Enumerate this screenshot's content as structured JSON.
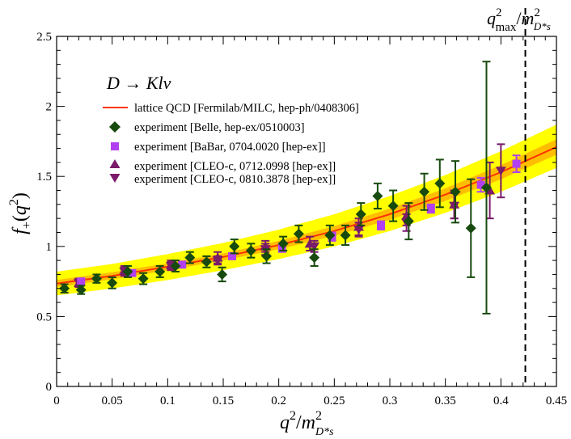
{
  "chart_data": {
    "type": "scatter",
    "title": "",
    "process_label": "D → Klν",
    "xlabel": {
      "base": "q",
      "sup": "2",
      "sep": "/",
      "base2": "m",
      "sup2": "2",
      "sub2": "D*s"
    },
    "ylabel": {
      "base": "f",
      "sub": "+",
      "paren_open": "(",
      "inner": "q",
      "inner_sup": "2",
      "paren_close": ")"
    },
    "qmax_label": {
      "base": "q",
      "sup": "2",
      "sub": "max",
      "sep": "/",
      "base2": "m",
      "sup2": "2",
      "sub2": "D*s"
    },
    "xlim": [
      0,
      0.45
    ],
    "ylim": [
      0,
      2.5
    ],
    "x_ticks": [
      0,
      0.05,
      0.1,
      0.15,
      0.2,
      0.25,
      0.3,
      0.35,
      0.4,
      0.45
    ],
    "x_tick_labels": [
      "0",
      "0.05",
      "0.1",
      "0.15",
      "0.2",
      "0.25",
      "0.3",
      "0.35",
      "0.4",
      "0.45"
    ],
    "y_ticks": [
      0,
      0.5,
      1,
      1.5,
      2,
      2.5
    ],
    "y_tick_labels": [
      "0",
      "0.5",
      "1",
      "1.5",
      "2",
      "2.5"
    ],
    "qmax_x": 0.422,
    "lattice": {
      "name": "lattice QCD [Fermilab/MILC, hep-ph/0408306]",
      "color": "#ff3300",
      "x": [
        0,
        0.05,
        0.1,
        0.15,
        0.2,
        0.25,
        0.3,
        0.35,
        0.4,
        0.45
      ],
      "center": [
        0.735,
        0.79,
        0.855,
        0.925,
        1.01,
        1.11,
        1.23,
        1.37,
        1.53,
        1.71
      ],
      "inner_low": [
        0.71,
        0.765,
        0.83,
        0.9,
        0.98,
        1.075,
        1.19,
        1.325,
        1.48,
        1.655
      ],
      "inner_high": [
        0.76,
        0.815,
        0.88,
        0.95,
        1.04,
        1.145,
        1.27,
        1.415,
        1.58,
        1.765
      ],
      "outer_low": [
        0.65,
        0.7,
        0.76,
        0.83,
        0.91,
        1.0,
        1.11,
        1.24,
        1.39,
        1.56
      ],
      "outer_high": [
        0.82,
        0.875,
        0.945,
        1.025,
        1.12,
        1.23,
        1.36,
        1.51,
        1.68,
        1.87
      ],
      "band_color_outer": "#ffff00",
      "band_color_inner": "#ffaa00"
    },
    "series": [
      {
        "name": "experiment [Belle, hep-ex/0510003]",
        "marker": "diamond",
        "color": "#174a0e",
        "points": [
          [
            0.007,
            0.7,
            0.03
          ],
          [
            0.022,
            0.69,
            0.03
          ],
          [
            0.036,
            0.77,
            0.03
          ],
          [
            0.05,
            0.74,
            0.04
          ],
          [
            0.064,
            0.82,
            0.04
          ],
          [
            0.078,
            0.77,
            0.04
          ],
          [
            0.093,
            0.82,
            0.04
          ],
          [
            0.107,
            0.86,
            0.04
          ],
          [
            0.12,
            0.92,
            0.04
          ],
          [
            0.135,
            0.89,
            0.04
          ],
          [
            0.149,
            0.8,
            0.05
          ],
          [
            0.16,
            1.0,
            0.05
          ],
          [
            0.175,
            0.97,
            0.05
          ],
          [
            0.189,
            0.93,
            0.05
          ],
          [
            0.204,
            1.02,
            0.05
          ],
          [
            0.218,
            1.09,
            0.06
          ],
          [
            0.232,
            0.92,
            0.06
          ],
          [
            0.246,
            1.08,
            0.07
          ],
          [
            0.26,
            1.08,
            0.07
          ],
          [
            0.274,
            1.23,
            0.08
          ],
          [
            0.289,
            1.36,
            0.09
          ],
          [
            0.303,
            1.29,
            0.11
          ],
          [
            0.317,
            1.18,
            0.13
          ],
          [
            0.331,
            1.39,
            0.13
          ],
          [
            0.345,
            1.45,
            0.17
          ],
          [
            0.359,
            1.39,
            0.22
          ],
          [
            0.373,
            1.13,
            0.35
          ],
          [
            0.387,
            1.42,
            0.9
          ]
        ]
      },
      {
        "name": "experiment [BaBar, 0704.0020 [hep-ex]]",
        "marker": "square",
        "color": "#b040f0",
        "points": [
          [
            0.022,
            0.75,
            0.02
          ],
          [
            0.068,
            0.81,
            0.02
          ],
          [
            0.113,
            0.87,
            0.02
          ],
          [
            0.158,
            0.93,
            0.02
          ],
          [
            0.203,
            0.99,
            0.03
          ],
          [
            0.248,
            1.07,
            0.03
          ],
          [
            0.292,
            1.15,
            0.03
          ],
          [
            0.337,
            1.27,
            0.03
          ],
          [
            0.382,
            1.44,
            0.05
          ],
          [
            0.414,
            1.59,
            0.06
          ]
        ]
      },
      {
        "name": "experiment [CLEO-c, 0712.0998 [hep-ex]]",
        "marker": "triangle-up",
        "color": "#7a1b6b",
        "points": [
          [
            0.02,
            0.74,
            0.03
          ],
          [
            0.061,
            0.83,
            0.03
          ],
          [
            0.103,
            0.87,
            0.03
          ],
          [
            0.145,
            0.92,
            0.04
          ],
          [
            0.188,
            1.0,
            0.04
          ],
          [
            0.228,
            1.02,
            0.05
          ],
          [
            0.272,
            1.14,
            0.06
          ],
          [
            0.315,
            1.22,
            0.07
          ],
          [
            0.358,
            1.3,
            0.1
          ],
          [
            0.39,
            1.4,
            0.2
          ]
        ]
      },
      {
        "name": "experiment [CLEO-c, 0810.3878 [hep-ex]]",
        "marker": "triangle-down",
        "color": "#7a1b6b",
        "points": [
          [
            0.02,
            0.74,
            0.03
          ],
          [
            0.061,
            0.82,
            0.03
          ],
          [
            0.103,
            0.86,
            0.03
          ],
          [
            0.145,
            0.9,
            0.03
          ],
          [
            0.188,
            0.98,
            0.04
          ],
          [
            0.232,
            1.0,
            0.04
          ],
          [
            0.272,
            1.12,
            0.05
          ],
          [
            0.315,
            1.17,
            0.06
          ],
          [
            0.358,
            1.29,
            0.09
          ],
          [
            0.4,
            1.54,
            0.19
          ]
        ]
      }
    ]
  }
}
